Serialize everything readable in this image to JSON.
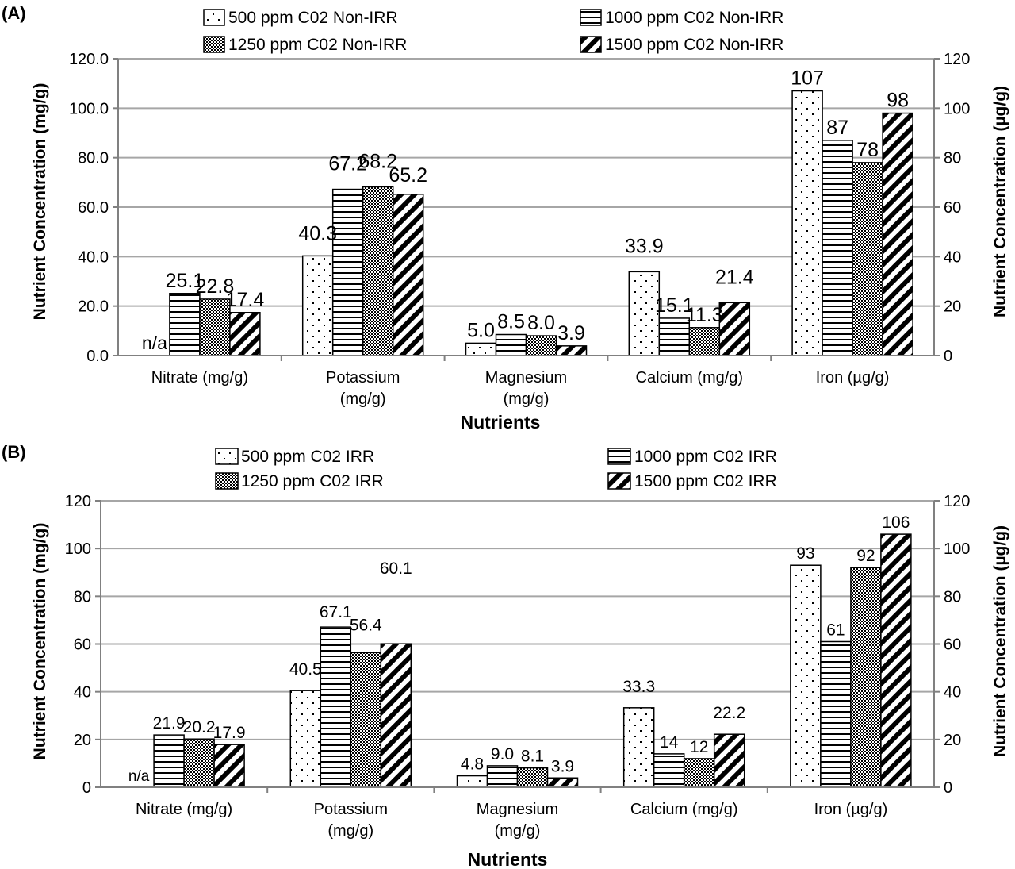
{
  "chart_data": [
    {
      "type": "bar",
      "panel_label": "(A)",
      "categories": [
        "Nitrate (mg/g)",
        "Potassium\n(mg/g)",
        "Magnesium\n(mg/g)",
        "Calcium (mg/g)",
        "Iron (µg/g)"
      ],
      "series": [
        {
          "name": "500 ppm C02 Non-IRR",
          "pattern": "dots",
          "values": [
            null,
            40.3,
            5.0,
            33.9,
            107
          ],
          "labels": [
            "n/a",
            "40.3",
            "5.0",
            "33.9",
            "107"
          ]
        },
        {
          "name": "1000 ppm C02 Non-IRR",
          "pattern": "hlines",
          "values": [
            25.1,
            67.2,
            8.5,
            15.1,
            87
          ],
          "labels": [
            "25.1",
            "67.2",
            "8.5",
            "15.1",
            "87"
          ]
        },
        {
          "name": "1250 ppm C02 Non-IRR",
          "pattern": "checker",
          "values": [
            22.8,
            68.2,
            8.0,
            11.3,
            78
          ],
          "labels": [
            "22.8",
            "68.2",
            "8.0",
            "11.3",
            "78"
          ]
        },
        {
          "name": "1500 ppm C02 Non-IRR",
          "pattern": "diag",
          "values": [
            17.4,
            65.2,
            3.9,
            21.4,
            98
          ],
          "labels": [
            "17.4",
            "65.2",
            "3.9",
            "21.4",
            "98"
          ]
        }
      ],
      "ylim": [
        0,
        120
      ],
      "yticks_left": [
        "0.0",
        "20.0",
        "40.0",
        "60.0",
        "80.0",
        "100.0",
        "120.0"
      ],
      "yticks_right": [
        "0",
        "20",
        "40",
        "60",
        "80",
        "100",
        "120"
      ],
      "ylabel": "Nutrient Concentration (mg/g)",
      "ylabel_right": "Nutrient Concentration (µg/g)",
      "xlabel": "Nutrients",
      "grid": true,
      "legend_position": "top"
    },
    {
      "type": "bar",
      "panel_label": "(B)",
      "categories": [
        "Nitrate (mg/g)",
        "Potassium\n(mg/g)",
        "Magnesium\n(mg/g)",
        "Calcium (mg/g)",
        "Iron (µg/g)"
      ],
      "series": [
        {
          "name": "500 ppm C02 IRR",
          "pattern": "dots",
          "values": [
            null,
            40.5,
            4.8,
            33.3,
            93
          ],
          "labels": [
            "n/a",
            "40.5",
            "4.8",
            "33.3",
            "93"
          ]
        },
        {
          "name": "1000 ppm C02 IRR",
          "pattern": "hlines",
          "values": [
            21.9,
            67.1,
            9.0,
            14,
            61
          ],
          "labels": [
            "21.9",
            "67.1",
            "9.0",
            "14",
            "61"
          ]
        },
        {
          "name": "1250 ppm C02 IRR",
          "pattern": "checker",
          "values": [
            20.2,
            56.4,
            8.1,
            12,
            92
          ],
          "labels": [
            "20.2",
            "56.4",
            "8.1",
            "12",
            "92"
          ]
        },
        {
          "name": "1500 ppm C02 IRR",
          "pattern": "diag",
          "values": [
            17.9,
            60.1,
            3.9,
            22.2,
            106
          ],
          "labels": [
            "17.9",
            "60.1",
            "3.9",
            "22.2",
            "106"
          ]
        }
      ],
      "ylim": [
        0,
        120
      ],
      "yticks_left": [
        "0",
        "20",
        "40",
        "60",
        "80",
        "100",
        "120"
      ],
      "yticks_right": [
        "0",
        "20",
        "40",
        "60",
        "80",
        "100",
        "120"
      ],
      "ylabel": "Nutrient Concentration (mg/g)",
      "ylabel_right": "Nutrient Concentration (µg/g)",
      "xlabel": "Nutrients",
      "grid": true,
      "legend_position": "top"
    }
  ]
}
